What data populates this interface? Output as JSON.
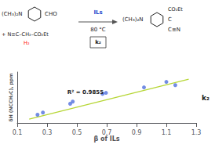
{
  "chart_data": {
    "type": "scatter",
    "xlabel": "β of ILs",
    "ylabel": "δH (NCCH₂C), ppm",
    "series": [
      {
        "type": "scatter",
        "x": [
          0.236,
          0.272,
          0.455,
          0.472,
          0.672,
          0.695,
          0.95,
          1.1,
          1.16
        ],
        "values": [
          0.3,
          0.34,
          0.5,
          0.54,
          0.68,
          0.7,
          0.8,
          0.9,
          0.84
        ]
      },
      {
        "type": "line",
        "x": [
          0.18,
          1.25
        ],
        "values": [
          0.22,
          0.95
        ]
      }
    ],
    "xlim": [
      0.1,
      1.3
    ],
    "ylim": [
      0.15,
      1.08
    ],
    "xticks": [
      0.1,
      0.3,
      0.5,
      0.7,
      0.9,
      1.1,
      1.3
    ],
    "tick_labels": "x",
    "grid": false,
    "annotations": [
      {
        "text": "R² = 0.9855"
      },
      {
        "text": "k₂"
      },
      {
        "text": "(CH₃)₂N"
      },
      {
        "text": "CHO"
      },
      {
        "text": "+ N≡C–CH₂–CO₂Et"
      },
      {
        "text": "H₂",
        "color": "#ff0000"
      },
      {
        "text": "ILs",
        "color": "#2244cc"
      },
      {
        "text": "80 °C"
      },
      {
        "text": "k₂"
      },
      {
        "text": "(CH₃)₂N"
      },
      {
        "text": "CO₂Et"
      },
      {
        "text": "C"
      },
      {
        "text": "C≡N"
      }
    ]
  }
}
